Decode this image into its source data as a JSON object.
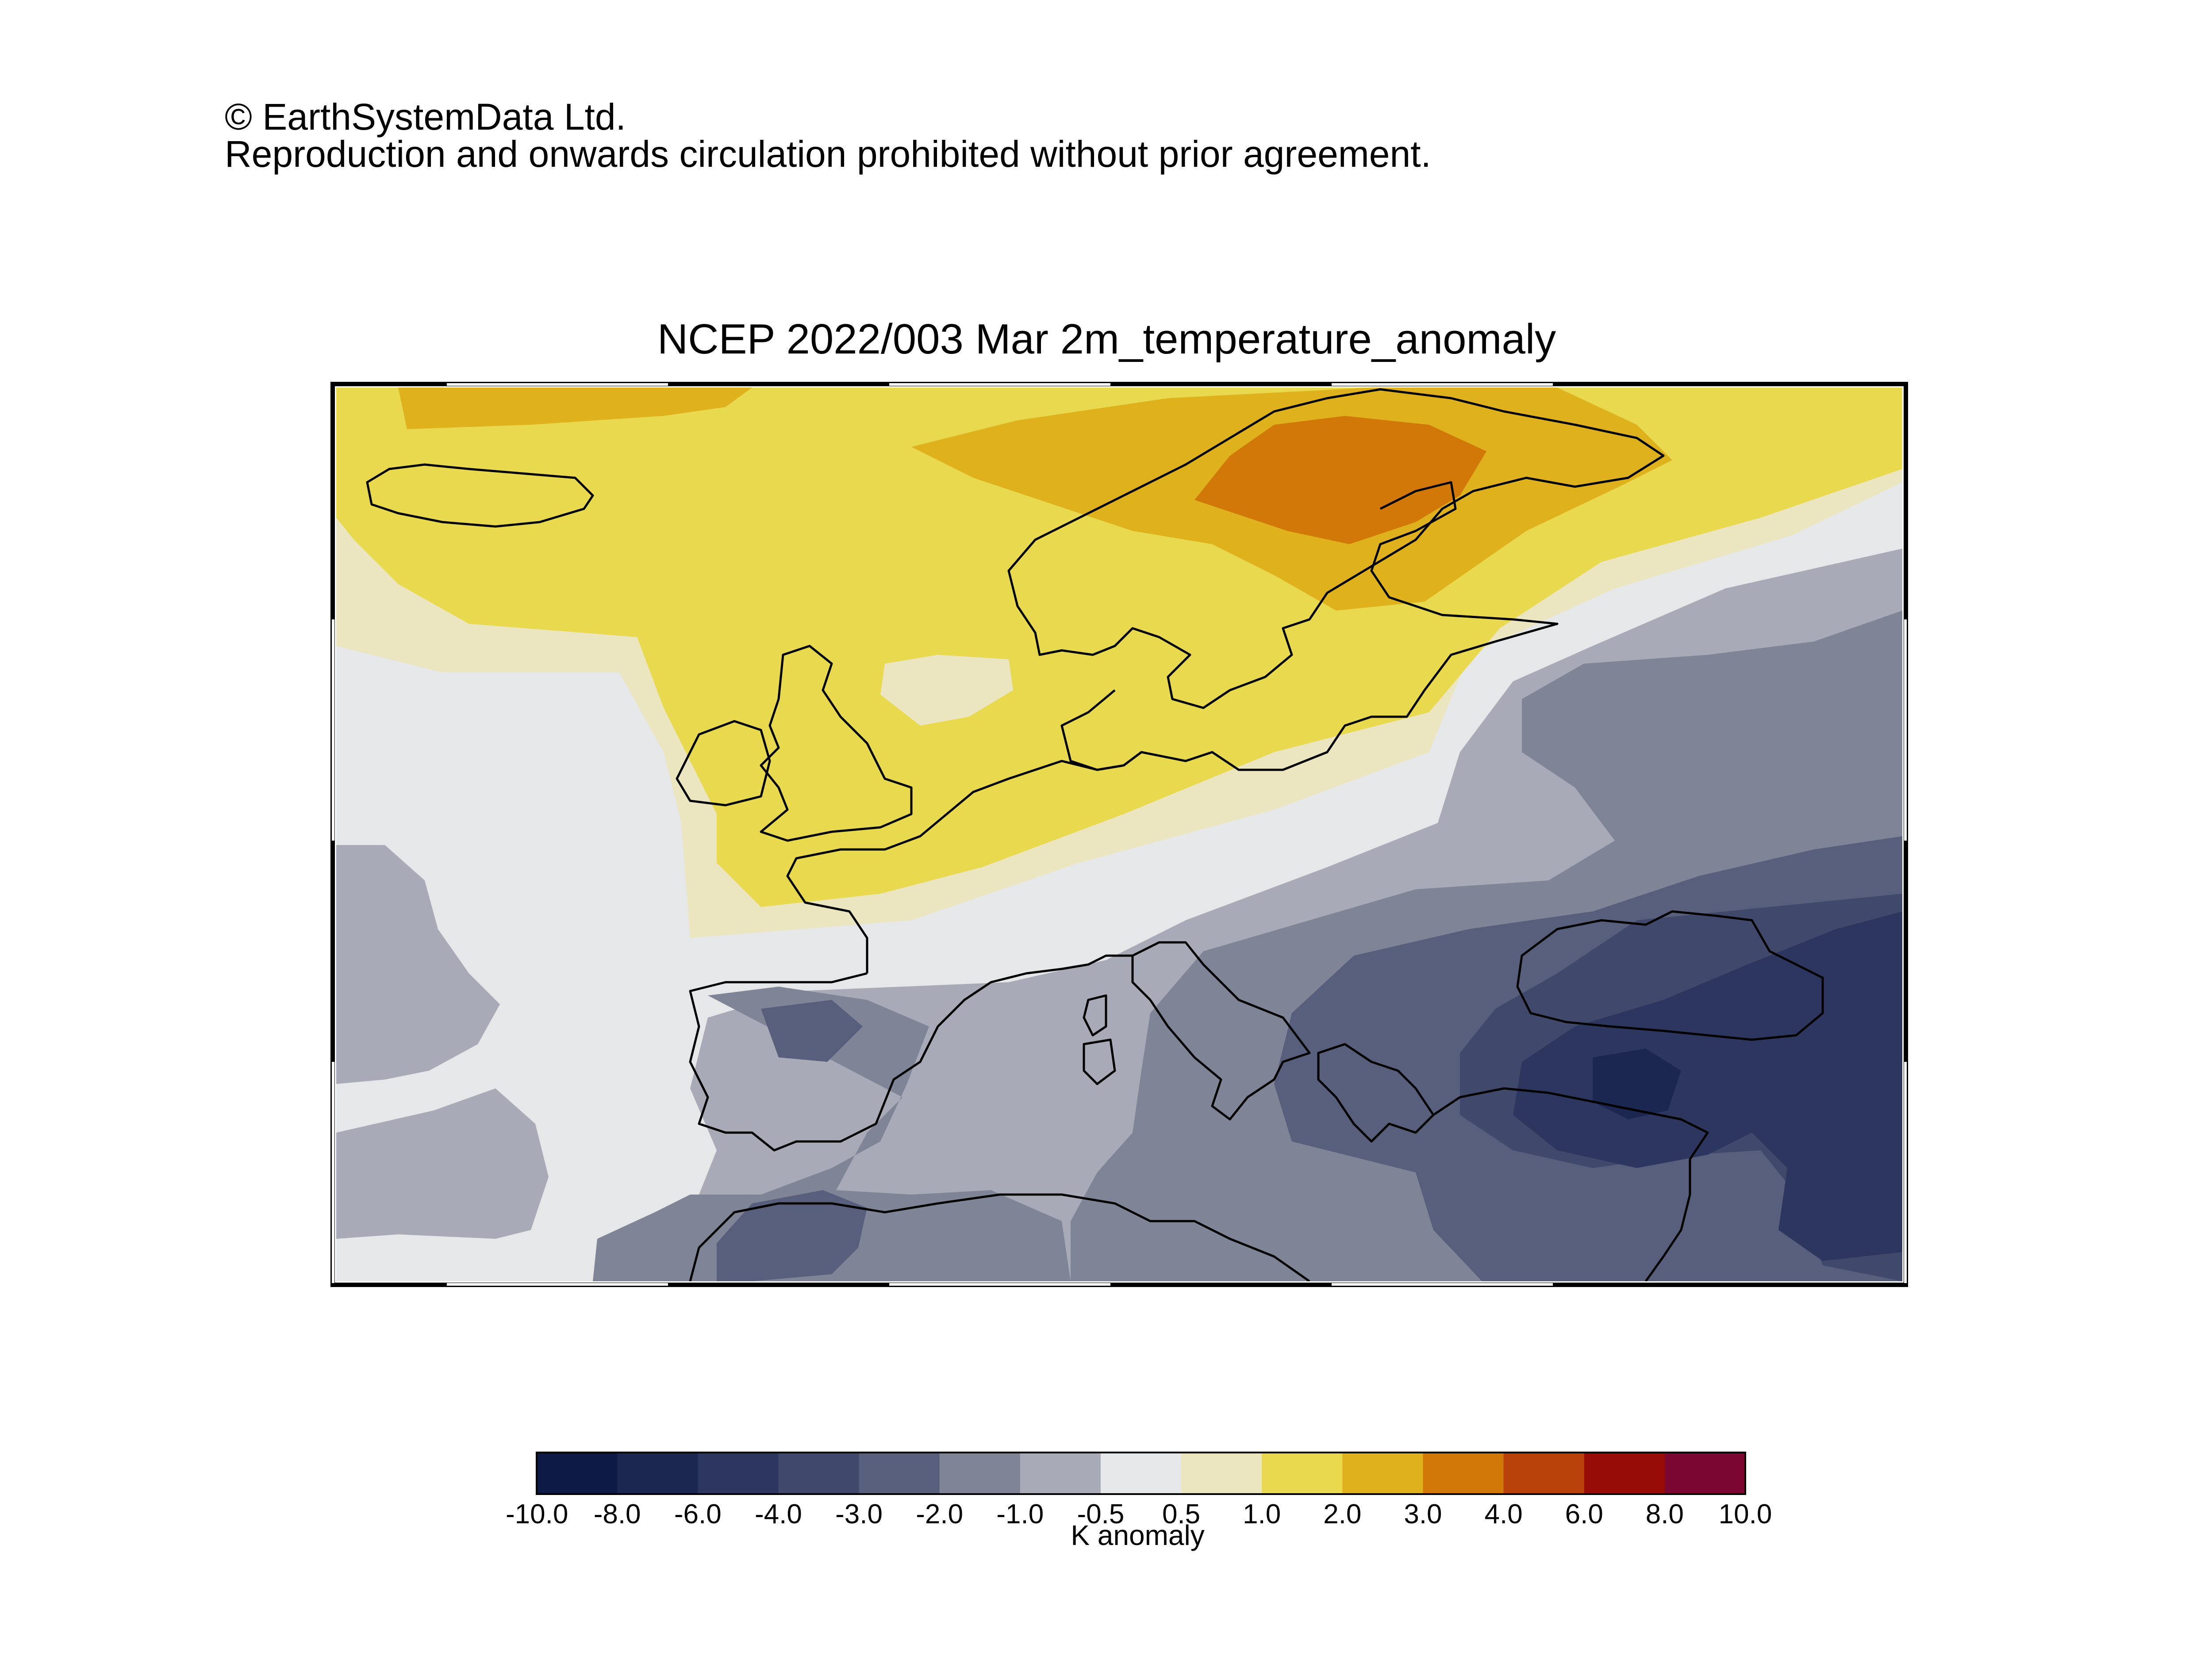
{
  "copyright": {
    "line1": "© EarthSystemData Ltd.",
    "line2": "Reproduction and onwards circulation prohibited without prior agreement."
  },
  "map": {
    "title": "NCEP 2022/003 Mar 2m_temperature_anomaly",
    "region": "Europe and North Atlantic"
  },
  "colorbar": {
    "title": "K anomaly",
    "tick_labels": [
      "-10.0",
      "-8.0",
      "-6.0",
      "-4.0",
      "-3.0",
      "-2.0",
      "-1.0",
      "-0.5",
      "0.5",
      "1.0",
      "2.0",
      "3.0",
      "4.0",
      "6.0",
      "8.0",
      "10.0"
    ],
    "colors": [
      "#0d1a45",
      "#1c2751",
      "#2c365f",
      "#40486b",
      "#585f7c",
      "#7f8496",
      "#a8abb7",
      "#e6e7e8",
      "#ebe6c0",
      "#e8d94e",
      "#dfb21d",
      "#d17808",
      "#b8420a",
      "#970c06",
      "#7c0632"
    ]
  }
}
